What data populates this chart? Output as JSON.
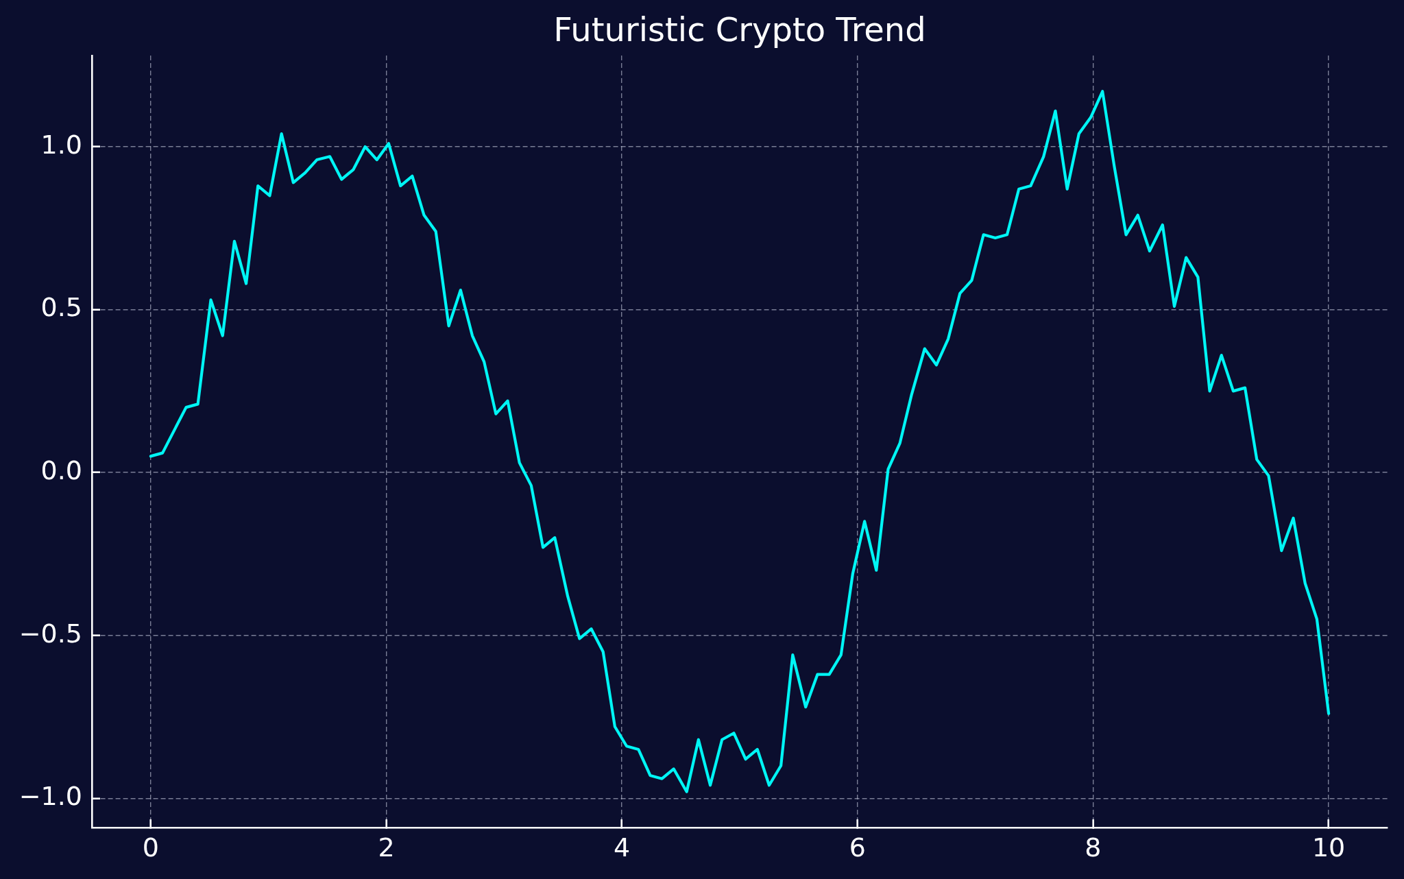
{
  "chart_data": {
    "type": "line",
    "title": "Futuristic Crypto Trend",
    "x": [
      0,
      0.1,
      0.2,
      0.3,
      0.4,
      0.51,
      0.61,
      0.71,
      0.81,
      0.91,
      1.01,
      1.11,
      1.21,
      1.31,
      1.41,
      1.52,
      1.62,
      1.72,
      1.82,
      1.92,
      2.02,
      2.12,
      2.22,
      2.32,
      2.42,
      2.53,
      2.63,
      2.73,
      2.83,
      2.93,
      3.03,
      3.13,
      3.23,
      3.33,
      3.43,
      3.54,
      3.64,
      3.74,
      3.84,
      3.94,
      4.04,
      4.14,
      4.24,
      4.34,
      4.44,
      4.55,
      4.65,
      4.75,
      4.85,
      4.95,
      5.05,
      5.15,
      5.25,
      5.35,
      5.45,
      5.56,
      5.66,
      5.76,
      5.86,
      5.96,
      6.06,
      6.16,
      6.26,
      6.36,
      6.46,
      6.57,
      6.67,
      6.77,
      6.87,
      6.97,
      7.07,
      7.17,
      7.27,
      7.37,
      7.47,
      7.58,
      7.68,
      7.78,
      7.88,
      7.98,
      8.08,
      8.18,
      8.28,
      8.38,
      8.48,
      8.59,
      8.69,
      8.79,
      8.89,
      8.99,
      9.09,
      9.19,
      9.29,
      9.39,
      9.49,
      9.6,
      9.7,
      9.8,
      9.9,
      10
    ],
    "series": [
      {
        "color": "#00f5f5",
        "values": [
          0.05,
          0.06,
          0.13,
          0.2,
          0.21,
          0.53,
          0.42,
          0.71,
          0.58,
          0.88,
          0.85,
          1.04,
          0.89,
          0.92,
          0.96,
          0.97,
          0.9,
          0.93,
          1,
          0.96,
          1.01,
          0.88,
          0.91,
          0.79,
          0.74,
          0.45,
          0.56,
          0.42,
          0.34,
          0.18,
          0.22,
          0.03,
          -0.04,
          -0.23,
          -0.2,
          -0.38,
          -0.51,
          -0.48,
          -0.55,
          -0.78,
          -0.84,
          -0.85,
          -0.93,
          -0.94,
          -0.91,
          -0.98,
          -0.82,
          -0.96,
          -0.82,
          -0.8,
          -0.88,
          -0.85,
          -0.96,
          -0.9,
          -0.56,
          -0.72,
          -0.62,
          -0.62,
          -0.56,
          -0.31,
          -0.15,
          -0.3,
          0.01,
          0.09,
          0.24,
          0.38,
          0.33,
          0.41,
          0.55,
          0.59,
          0.73,
          0.72,
          0.73,
          0.87,
          0.88,
          0.97,
          1.11,
          0.87,
          1.04,
          1.09,
          1.17,
          0.94,
          0.73,
          0.79,
          0.68,
          0.76,
          0.51,
          0.66,
          0.6,
          0.25,
          0.36,
          0.25,
          0.26,
          0.04,
          -0.01,
          -0.24,
          -0.14,
          -0.34,
          -0.45,
          -0.74
        ]
      }
    ],
    "xlim": [
      -0.5,
      10.5
    ],
    "ylim": [
      -1.09,
      1.28
    ],
    "xticks": [
      0,
      2,
      4,
      6,
      8,
      10
    ],
    "yticks": [
      {
        "value": -1,
        "label": "−1.0"
      },
      {
        "value": -0.5,
        "label": "−0.5"
      },
      {
        "value": 0,
        "label": "0.0"
      },
      0.5,
      {
        "value": 1,
        "label": "1.0"
      }
    ],
    "grid": true,
    "line_style": "solid"
  }
}
